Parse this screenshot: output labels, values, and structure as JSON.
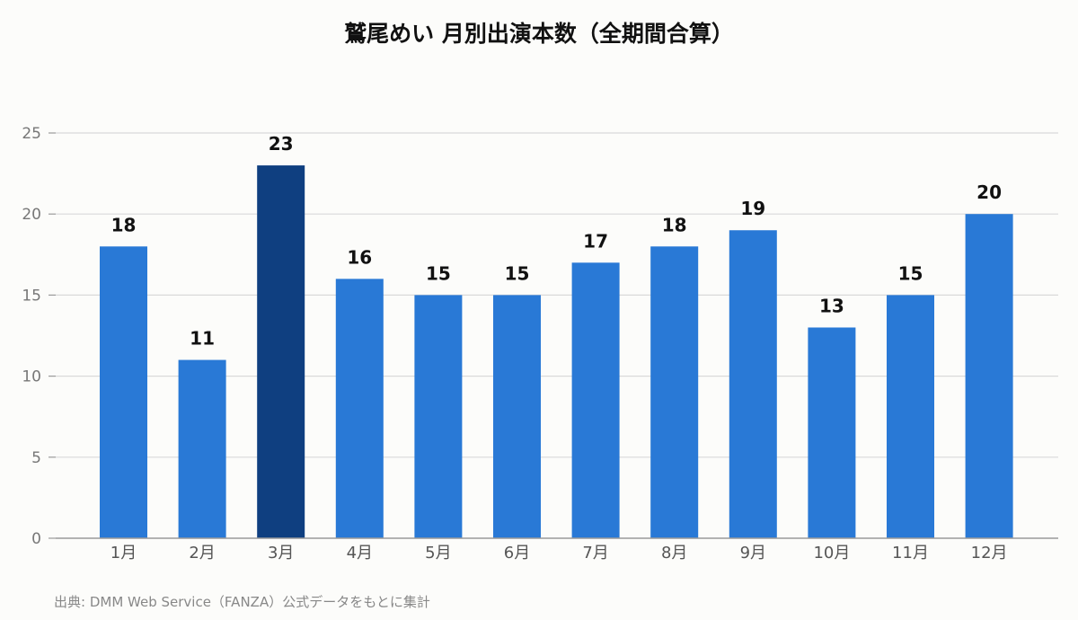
{
  "colors": {
    "bar": "#2979d6",
    "highlight": "#0f3f80",
    "grid": "#d9d9d9",
    "axis": "#9a9a9a"
  },
  "chart_data": {
    "type": "bar",
    "title": "鷲尾めい 月別出演本数（全期間合算）",
    "categories": [
      "1月",
      "2月",
      "3月",
      "4月",
      "5月",
      "6月",
      "7月",
      "8月",
      "9月",
      "10月",
      "11月",
      "12月"
    ],
    "values": [
      18,
      11,
      23,
      16,
      15,
      15,
      17,
      18,
      19,
      13,
      15,
      20
    ],
    "highlight_index": 2,
    "ylim": [
      0,
      25
    ],
    "yticks": [
      0,
      5,
      10,
      15,
      20,
      25
    ],
    "grid": true,
    "xlabel": "",
    "ylabel": ""
  },
  "source": "出典: DMM Web Service（FANZA）公式データをもとに集計"
}
